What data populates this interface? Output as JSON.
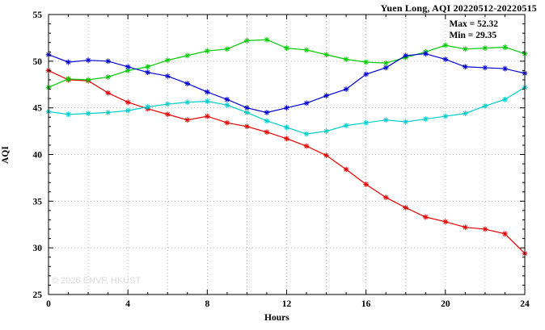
{
  "chart_data": {
    "type": "line",
    "title": "Yuen Long, AQI 20220512-20220515",
    "xlabel": "Hours",
    "ylabel": "AQI",
    "xlim": [
      0,
      24
    ],
    "ylim": [
      25,
      55
    ],
    "x_tick_step": 4,
    "y_tick_step": 5,
    "x_minor_step": 1,
    "y_minor_step": 1,
    "grid": true,
    "grid_x_step": 2,
    "grid_y_step": 5,
    "grid_color": "#9a9a9a",
    "annotations": {
      "max_label": "Max = 52.32",
      "min_label": "Min = 29.35"
    },
    "watermark": "© 2026 ENVF, HKUST",
    "x": [
      0,
      1,
      2,
      3,
      4,
      5,
      6,
      7,
      8,
      9,
      10,
      11,
      12,
      13,
      14,
      15,
      16,
      17,
      18,
      19,
      20,
      21,
      22,
      23,
      24
    ],
    "series": [
      {
        "name": "series-red",
        "color": "#e60000",
        "values": [
          49.0,
          48.0,
          47.9,
          46.6,
          45.6,
          44.9,
          44.3,
          43.7,
          44.1,
          43.4,
          43.0,
          42.4,
          41.7,
          40.9,
          39.9,
          38.4,
          36.8,
          35.4,
          34.3,
          33.3,
          32.8,
          32.2,
          32.0,
          31.5,
          29.4
        ]
      },
      {
        "name": "series-green",
        "color": "#00cc00",
        "values": [
          47.2,
          48.1,
          48.0,
          48.3,
          49.0,
          49.4,
          50.1,
          50.6,
          51.1,
          51.3,
          52.2,
          52.3,
          51.4,
          51.2,
          50.7,
          50.2,
          49.9,
          49.8,
          50.4,
          51.0,
          51.7,
          51.3,
          51.4,
          51.5,
          50.8
        ]
      },
      {
        "name": "series-blue",
        "color": "#0000d0",
        "values": [
          50.7,
          49.9,
          50.1,
          50.0,
          49.4,
          48.8,
          48.4,
          47.6,
          46.7,
          45.9,
          45.0,
          44.5,
          45.0,
          45.5,
          46.3,
          47.0,
          48.6,
          49.3,
          50.6,
          50.8,
          50.2,
          49.4,
          49.3,
          49.2,
          48.7
        ]
      },
      {
        "name": "series-cyan",
        "color": "#00cccc",
        "values": [
          44.6,
          44.3,
          44.4,
          44.5,
          44.7,
          45.1,
          45.4,
          45.6,
          45.7,
          45.3,
          44.5,
          43.6,
          42.9,
          42.2,
          42.5,
          43.1,
          43.4,
          43.7,
          43.5,
          43.8,
          44.1,
          44.4,
          45.2,
          45.9,
          47.2
        ]
      }
    ]
  }
}
